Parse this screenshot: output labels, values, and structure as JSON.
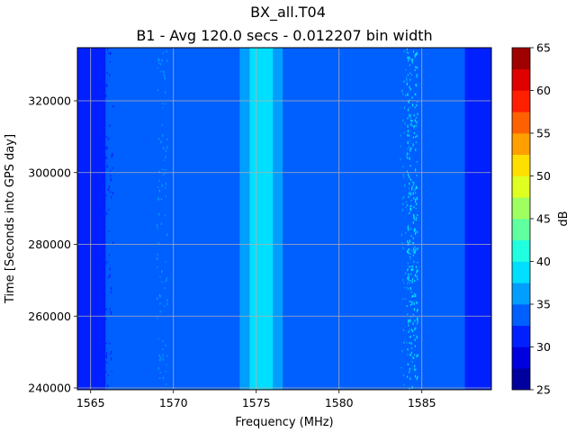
{
  "chart_data": {
    "type": "heatmap",
    "suptitle": "BX_all.T04",
    "title": "B1 - Avg 120.0 secs - 0.012207 bin width",
    "xlabel": "Frequency (MHz)",
    "ylabel": "Time [Seconds into GPS day]",
    "xlim": [
      1564.2,
      1589.2
    ],
    "ylim": [
      239500,
      334800
    ],
    "xticks": [
      1565,
      1570,
      1575,
      1580,
      1585
    ],
    "yticks": [
      240000,
      260000,
      280000,
      300000,
      320000
    ],
    "grid": true,
    "colorbar": {
      "label": "dB",
      "levels": [
        25,
        27.5,
        30,
        32.5,
        35,
        37.5,
        40,
        42.5,
        45,
        47.5,
        50,
        52.5,
        55,
        57.5,
        60,
        62.5,
        65
      ],
      "ticks": [
        25,
        30,
        35,
        40,
        45,
        50,
        55,
        60,
        65
      ],
      "colors": [
        "#00009f",
        "#0000df",
        "#0020ff",
        "#005fff",
        "#009fff",
        "#00dfff",
        "#20ffdf",
        "#60ff9f",
        "#9fff60",
        "#dfff20",
        "#ffdf00",
        "#ff9f00",
        "#ff6000",
        "#ff2000",
        "#df0000",
        "#9f0000"
      ]
    },
    "bands": [
      {
        "from": 1564.2,
        "to": 1565.1,
        "value": 31
      },
      {
        "from": 1565.1,
        "to": 1565.9,
        "value": 30
      },
      {
        "from": 1565.9,
        "to": 1574.0,
        "value": 33.5
      },
      {
        "from": 1574.0,
        "to": 1574.6,
        "value": 36
      },
      {
        "from": 1574.6,
        "to": 1576.0,
        "value": 38.5
      },
      {
        "from": 1576.0,
        "to": 1576.6,
        "value": 36
      },
      {
        "from": 1576.6,
        "to": 1587.6,
        "value": 33.5
      },
      {
        "from": 1587.6,
        "to": 1589.2,
        "value": 31
      }
    ],
    "interference": [
      {
        "x": 1584.0,
        "value": 36
      },
      {
        "x": 1584.4,
        "value": 38.5
      },
      {
        "x": 1569.3,
        "value": 36
      },
      {
        "x": 1566.0,
        "value": 31
      }
    ]
  }
}
